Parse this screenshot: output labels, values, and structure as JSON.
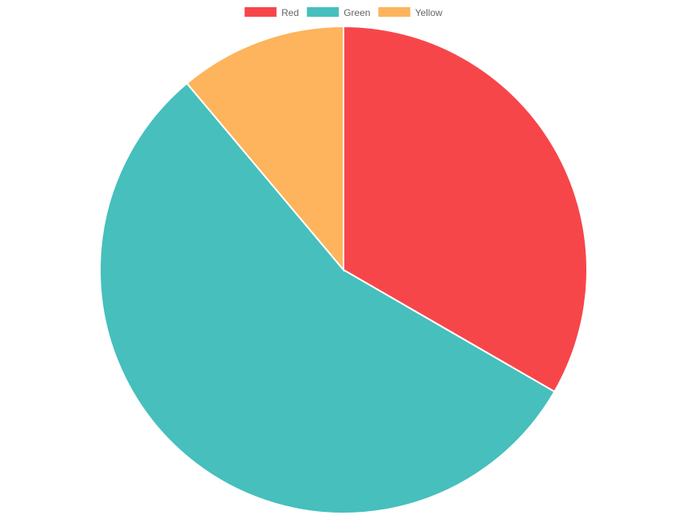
{
  "chart_data": {
    "type": "pie",
    "legend_position": "top",
    "slices": [
      {
        "label": "Red",
        "value": 300,
        "color": "#F7464A"
      },
      {
        "label": "Green",
        "value": 500,
        "color": "#46BFBD"
      },
      {
        "label": "Yellow",
        "value": 100,
        "color": "#FDB45C"
      }
    ]
  }
}
